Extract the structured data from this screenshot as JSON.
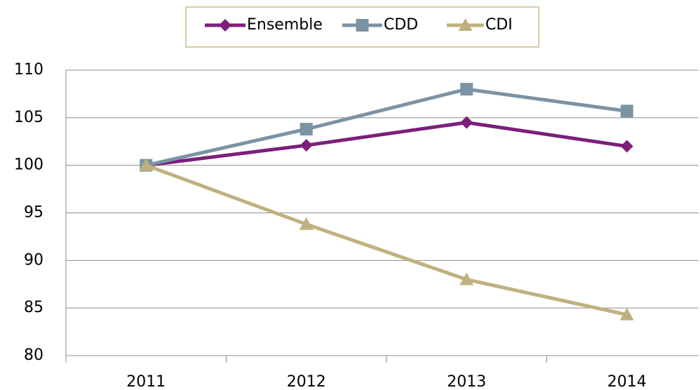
{
  "chart_data": {
    "type": "line",
    "categories": [
      "2011",
      "2012",
      "2013",
      "2014"
    ],
    "series": [
      {
        "name": "Ensemble",
        "color": "#7b1f7b",
        "marker": "diamond",
        "values": [
          100,
          102.1,
          104.5,
          102.0
        ]
      },
      {
        "name": "CDD",
        "color": "#7b93a3",
        "marker": "square",
        "values": [
          100,
          103.8,
          108.0,
          105.7
        ]
      },
      {
        "name": "CDI",
        "color": "#bfb17f",
        "marker": "triangle",
        "values": [
          100,
          93.8,
          88.0,
          84.3
        ]
      }
    ],
    "ylim": [
      80,
      110
    ],
    "yticks": [
      80,
      85,
      90,
      95,
      100,
      105,
      110
    ],
    "grid": true,
    "legend": "top"
  }
}
